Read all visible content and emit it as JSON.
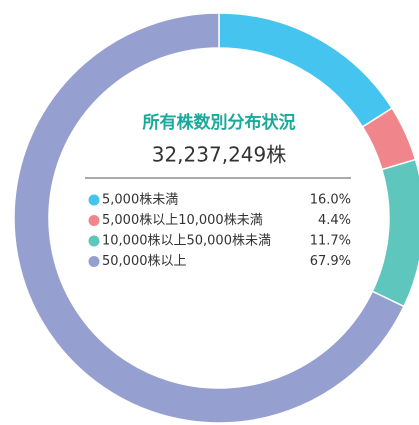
{
  "chart_data": {
    "type": "donut",
    "title": "所有株数別分布状況",
    "subtitle": "32,237,249株",
    "categories": [
      "5,000株未満",
      "5,000株以上10,000株未満",
      "10,000株以上50,000株未満",
      "50,000株以上"
    ],
    "values": [
      16.0,
      4.4,
      11.7,
      67.9
    ],
    "value_labels": [
      "16.0%",
      "4.4%",
      "11.7%",
      "67.9%"
    ],
    "colors": [
      "#45c4ef",
      "#f0858c",
      "#5ec6bc",
      "#96a0d0"
    ]
  }
}
